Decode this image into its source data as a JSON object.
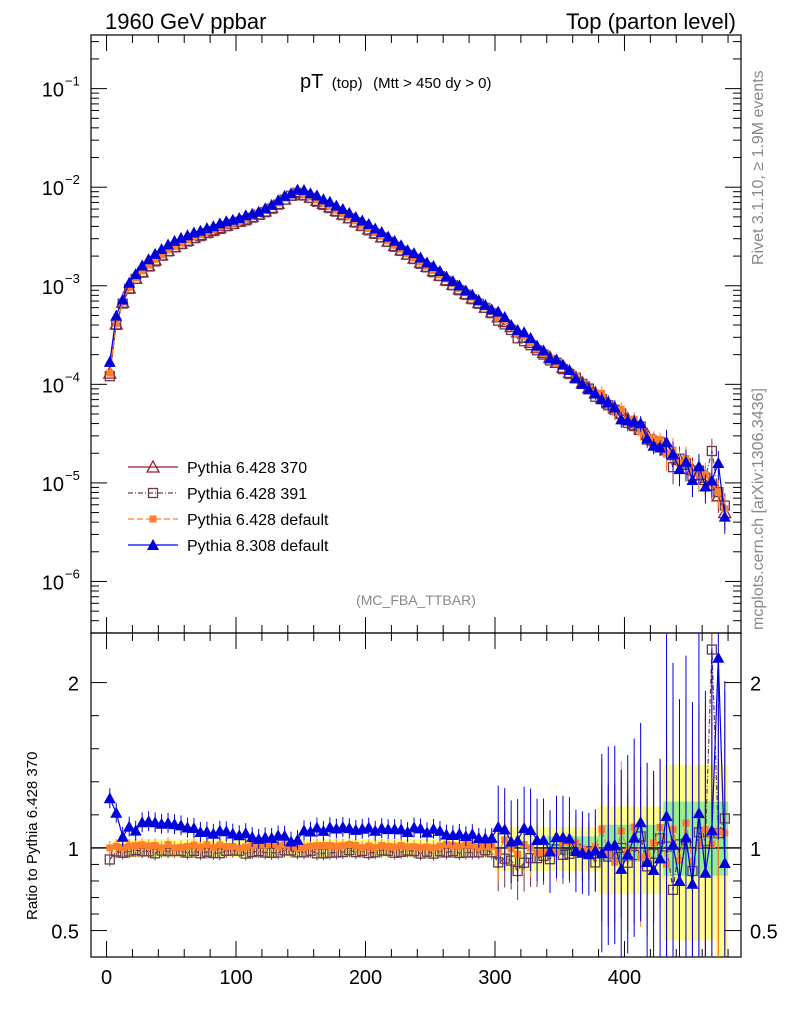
{
  "header": {
    "left": "1960 GeV ppbar",
    "right": "Top (parton level)"
  },
  "plot_title": {
    "main": "pT",
    "sub1": "(top)",
    "sub2": "(Mtt > 450 dy > 0)"
  },
  "side_labels": {
    "rivet": "Rivet 3.1.10, ≥ 1.9M events",
    "mcplots": "mcplots.cern.ch [arXiv:1306.3436]"
  },
  "analysis_tag": "(MC_FBA_TTBAR)",
  "colors": {
    "p370": "#9b1b30",
    "p391": "#6b3a4e",
    "pdef": "#ff7f2a",
    "p8": "#0000dd",
    "band_green": "#90ee90",
    "band_yellow": "#ffff8c"
  },
  "chart_data": [
    {
      "type": "line",
      "panel": "main",
      "yscale": "log",
      "xlim": [
        -12,
        490
      ],
      "ylim": [
        3e-07,
        0.35
      ],
      "y_ticks": [
        {
          "value": 0.1,
          "label": "10",
          "exp": "−1"
        },
        {
          "value": 0.01,
          "label": "10",
          "exp": "−2"
        },
        {
          "value": 0.001,
          "label": "10",
          "exp": "−3"
        },
        {
          "value": 0.0001,
          "label": "10",
          "exp": "−4"
        },
        {
          "value": 1e-05,
          "label": "10",
          "exp": "−5"
        },
        {
          "value": 1e-06,
          "label": "10",
          "exp": "−6"
        }
      ],
      "legend_position": "bottom-left",
      "legend": [
        {
          "name": "Pythia 6.428 370",
          "key": "p370"
        },
        {
          "name": "Pythia 6.428 391",
          "key": "p391"
        },
        {
          "name": "Pythia 6.428 default",
          "key": "pdef"
        },
        {
          "name": "Pythia 8.308 default",
          "key": "p8"
        }
      ],
      "knots_x": [
        2.5,
        7.5,
        12.5,
        17.5,
        22.5,
        30,
        40,
        50,
        60,
        70,
        80,
        90,
        100,
        110,
        120,
        130,
        140,
        147.5,
        155,
        170,
        190,
        210,
        230,
        250,
        270,
        290,
        310,
        330,
        350,
        370,
        390,
        410,
        430,
        450,
        460,
        470,
        477.5
      ],
      "knots_y": [
        0.00013,
        0.00041,
        0.00068,
        0.00095,
        0.00119,
        0.0015,
        0.00195,
        0.0024,
        0.0028,
        0.0032,
        0.0036,
        0.004,
        0.0044,
        0.0049,
        0.0055,
        0.0065,
        0.008,
        0.009,
        0.0082,
        0.0066,
        0.0047,
        0.0033,
        0.0022,
        0.0015,
        0.00098,
        0.00064,
        0.00041,
        0.00025,
        0.000158,
        9.8e-05,
        6.1e-05,
        3.7e-05,
        2.3e-05,
        1.45e-05,
        1.15e-05,
        9e-06,
        5e-06
      ],
      "x_step": 5,
      "x_start": 2.5,
      "x_end": 477.5
    },
    {
      "type": "line",
      "panel": "ratio",
      "xlabel": "",
      "ylabel": "Ratio to Pythia 6.428 370",
      "xlim": [
        -12,
        490
      ],
      "ylim": [
        0.34,
        2.3
      ],
      "x_ticks": [
        0,
        100,
        200,
        300,
        400
      ],
      "y_ticks": [
        {
          "value": 0.5,
          "label": "0.5"
        },
        {
          "value": 1,
          "label": "1"
        },
        {
          "value": 2,
          "label": "2"
        }
      ],
      "reference_line": 1,
      "bands": [
        {
          "name": "green",
          "color_key": "band_green"
        },
        {
          "name": "yellow",
          "color_key": "band_yellow"
        }
      ],
      "series_ratio_profile": [
        {
          "key": "p391",
          "base": 0.975,
          "first": 0.93
        },
        {
          "key": "pdef",
          "base": 1.01,
          "first": 1.0
        },
        {
          "key": "p8",
          "base": 1.1,
          "first": 1.3
        }
      ]
    }
  ]
}
